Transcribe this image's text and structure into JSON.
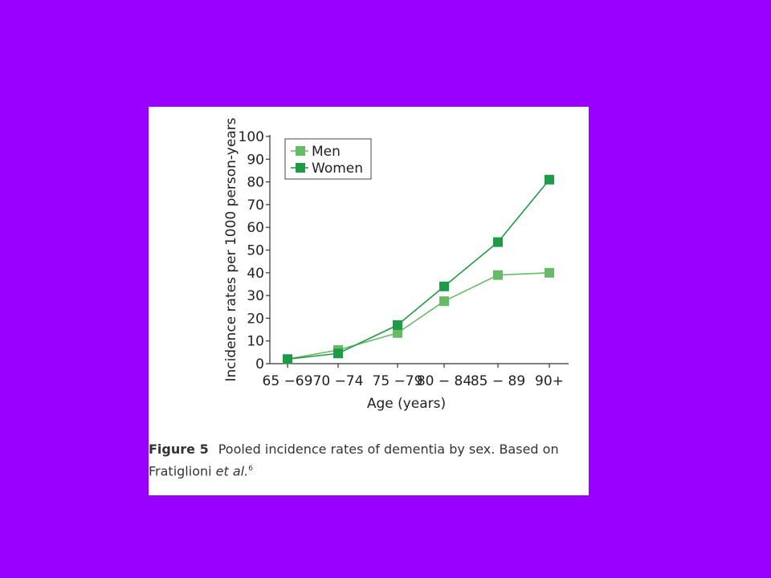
{
  "chart_data": {
    "type": "line",
    "categories": [
      "65 −69",
      "70 −74",
      "75 −79",
      "80 − 84",
      "85 − 89",
      "90+"
    ],
    "series": [
      {
        "name": "Men",
        "values": [
          2,
          6,
          13.5,
          27.5,
          39,
          40
        ],
        "color": "#66bb66"
      },
      {
        "name": "Women",
        "values": [
          2,
          4.5,
          17,
          34,
          53.5,
          81
        ],
        "color": "#1f9a46"
      }
    ],
    "xlabel": "Age (years)",
    "ylabel": "Incidence rates per 1000 person-years",
    "ylim": [
      0,
      100
    ],
    "yticks": [
      0,
      10,
      20,
      30,
      40,
      50,
      60,
      70,
      80,
      90,
      100
    ],
    "grid": false,
    "legend": "top-left"
  },
  "caption": {
    "label": "Figure 5",
    "text": "Pooled incidence rates of dementia by sex. Based on Fratiglioni ",
    "ref_italic": "et al.",
    "ref_superscript": "6"
  },
  "colors": {
    "background": "#9900ff",
    "panel": "#ffffff"
  }
}
